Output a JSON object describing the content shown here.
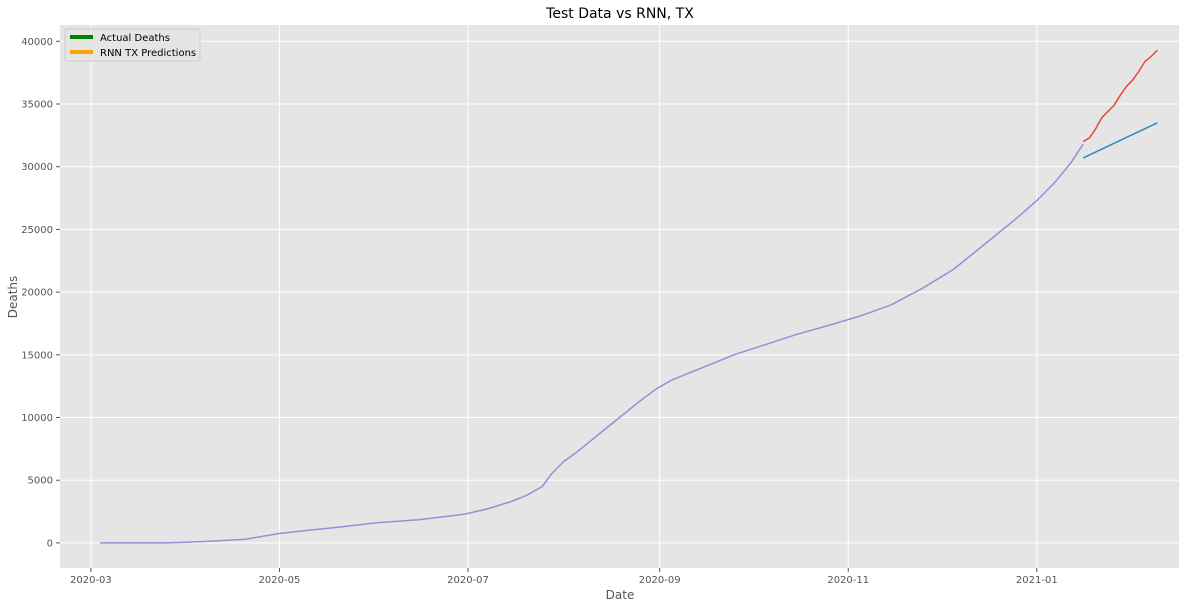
{
  "chart_data": {
    "type": "line",
    "title": "Test Data vs RNN, TX",
    "xlabel": "Date",
    "ylabel": "Deaths",
    "grid": true,
    "legend_position": "top-left",
    "xlim": [
      "2020-02-20",
      "2021-02-16"
    ],
    "ylim": [
      -2000,
      41300
    ],
    "x_ticks": [
      "2020-03-01",
      "2020-05-01",
      "2020-07-01",
      "2020-09-01",
      "2020-11-01",
      "2021-01-01"
    ],
    "x_tick_labels": [
      "2020-03",
      "2020-05",
      "2020-07",
      "2020-09",
      "2020-11",
      "2021-01"
    ],
    "y_ticks": [
      0,
      5000,
      10000,
      15000,
      20000,
      25000,
      30000,
      35000,
      40000
    ],
    "legend": [
      {
        "label": "Actual Deaths",
        "color": "#008000"
      },
      {
        "label": "RNN TX Predictions",
        "color": "#ffa500"
      }
    ],
    "series": [
      {
        "color": "#988ed5",
        "points": [
          [
            "2020-03-04",
            0
          ],
          [
            "2020-03-15",
            0
          ],
          [
            "2020-03-25",
            0
          ],
          [
            "2020-04-01",
            50
          ],
          [
            "2020-04-10",
            150
          ],
          [
            "2020-04-20",
            300
          ],
          [
            "2020-05-01",
            750
          ],
          [
            "2020-05-10",
            1000
          ],
          [
            "2020-05-20",
            1250
          ],
          [
            "2020-06-01",
            1600
          ],
          [
            "2020-06-15",
            1850
          ],
          [
            "2020-06-30",
            2300
          ],
          [
            "2020-07-07",
            2700
          ],
          [
            "2020-07-15",
            3300
          ],
          [
            "2020-07-20",
            3800
          ],
          [
            "2020-07-25",
            4500
          ],
          [
            "2020-07-28",
            5500
          ],
          [
            "2020-08-01",
            6500
          ],
          [
            "2020-08-05",
            7200
          ],
          [
            "2020-08-10",
            8200
          ],
          [
            "2020-08-15",
            9200
          ],
          [
            "2020-08-20",
            10200
          ],
          [
            "2020-08-25",
            11200
          ],
          [
            "2020-08-31",
            12300
          ],
          [
            "2020-09-05",
            13000
          ],
          [
            "2020-09-15",
            14000
          ],
          [
            "2020-09-25",
            15000
          ],
          [
            "2020-10-05",
            15800
          ],
          [
            "2020-10-15",
            16600
          ],
          [
            "2020-10-25",
            17300
          ],
          [
            "2020-11-05",
            18100
          ],
          [
            "2020-11-15",
            19000
          ],
          [
            "2020-11-25",
            20300
          ],
          [
            "2020-12-05",
            21800
          ],
          [
            "2020-12-15",
            23800
          ],
          [
            "2020-12-25",
            25800
          ],
          [
            "2021-01-01",
            27300
          ],
          [
            "2021-01-07",
            28800
          ],
          [
            "2021-01-12",
            30300
          ],
          [
            "2021-01-16",
            31800
          ]
        ]
      },
      {
        "color": "#e24a33",
        "points": [
          [
            "2021-01-16",
            32000
          ],
          [
            "2021-01-18",
            32300
          ],
          [
            "2021-01-20",
            33000
          ],
          [
            "2021-01-22",
            33900
          ],
          [
            "2021-01-24",
            34400
          ],
          [
            "2021-01-26",
            34900
          ],
          [
            "2021-01-28",
            35700
          ],
          [
            "2021-01-30",
            36400
          ],
          [
            "2021-02-01",
            36900
          ],
          [
            "2021-02-03",
            37600
          ],
          [
            "2021-02-05",
            38400
          ],
          [
            "2021-02-07",
            38800
          ],
          [
            "2021-02-09",
            39300
          ]
        ]
      },
      {
        "color": "#348abd",
        "points": [
          [
            "2021-01-16",
            30700
          ],
          [
            "2021-02-09",
            33500
          ]
        ]
      }
    ]
  }
}
